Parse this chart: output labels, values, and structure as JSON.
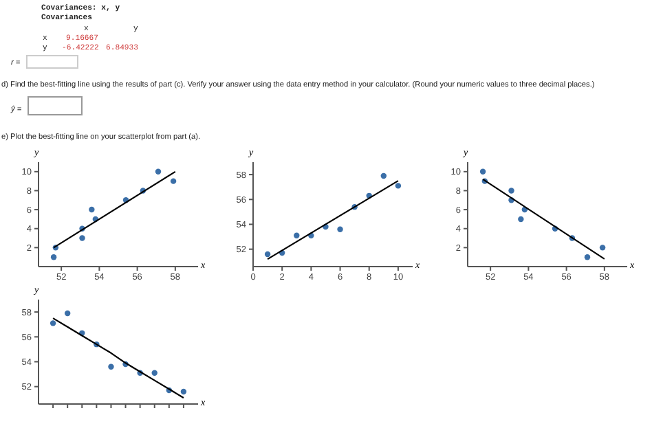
{
  "chart_data": [
    {
      "type": "other",
      "annotations": [
        "Covariances: x, y",
        "Covariances",
        "x",
        "y",
        "x",
        "9.16667",
        "y",
        "-6.42222",
        "6.84933",
        "r =",
        "d) Find the best-fitting line using the results of part (c). Verify your answer using the data entry method in your calculator. (Round your numeric values to three decimal places.)",
        "ŷ =",
        "e) Plot the best-fitting line on your scatterplot from part (a)."
      ]
    },
    {
      "type": "scatter",
      "xlabel": "x",
      "ylabel": "y",
      "xlim": [
        50.8,
        59.2
      ],
      "ylim": [
        0,
        11
      ],
      "xticks": [
        52,
        54,
        56,
        58
      ],
      "yticks": [
        2,
        4,
        6,
        8,
        10
      ],
      "series": [
        {
          "type": "scatter",
          "marker": "circle",
          "color": "#3b6fa8",
          "x": [
            51.6,
            51.7,
            53.1,
            53.1,
            53.6,
            53.8,
            55.4,
            56.3,
            57.1,
            57.9
          ],
          "values": [
            1,
            2,
            4,
            3,
            6,
            5,
            7,
            8,
            10,
            9
          ]
        },
        {
          "type": "line",
          "color": "#000000",
          "x": [
            51.6,
            58
          ],
          "values": [
            2,
            10
          ]
        }
      ]
    },
    {
      "type": "scatter",
      "xlabel": "x",
      "ylabel": "y",
      "xlim": [
        0,
        11
      ],
      "ylim": [
        50.6,
        59
      ],
      "xticks": [
        0,
        2,
        4,
        6,
        8,
        10
      ],
      "yticks": [
        52,
        54,
        56,
        58
      ],
      "series": [
        {
          "type": "scatter",
          "marker": "circle",
          "color": "#3b6fa8",
          "x": [
            1,
            2,
            3,
            4,
            5,
            6,
            7,
            8,
            9,
            10
          ],
          "values": [
            51.6,
            51.7,
            53.1,
            53.1,
            53.8,
            53.6,
            55.4,
            56.3,
            57.9,
            57.1
          ]
        },
        {
          "type": "line",
          "color": "#000000",
          "x": [
            1,
            10
          ],
          "values": [
            51.2,
            57.5
          ]
        }
      ]
    },
    {
      "type": "scatter",
      "xlabel": "x",
      "ylabel": "y",
      "xlim": [
        50.8,
        59.2
      ],
      "ylim": [
        0,
        11
      ],
      "xticks": [
        52,
        54,
        56,
        58
      ],
      "yticks": [
        2,
        4,
        6,
        8,
        10
      ],
      "series": [
        {
          "type": "scatter",
          "marker": "circle",
          "color": "#3b6fa8",
          "x": [
            51.6,
            51.7,
            53.1,
            53.1,
            53.6,
            53.8,
            55.4,
            56.3,
            57.1,
            57.9
          ],
          "values": [
            10,
            9,
            8,
            7,
            5,
            6,
            4,
            3,
            1,
            2
          ]
        },
        {
          "type": "line",
          "color": "#000000",
          "x": [
            51.6,
            58
          ],
          "values": [
            9.2,
            0.8
          ]
        }
      ]
    },
    {
      "type": "scatter",
      "xlabel": "x",
      "ylabel": "y",
      "categories": [
        null,
        null,
        null,
        null,
        null,
        null,
        null,
        null,
        null,
        null
      ],
      "ylim": [
        50.6,
        59
      ],
      "yticks": [
        52,
        54,
        56,
        58
      ],
      "series": [
        {
          "type": "scatter",
          "marker": "circle",
          "color": "#3b6fa8",
          "values": [
            57.1,
            57.9,
            56.3,
            55.4,
            53.6,
            53.8,
            53.1,
            53.1,
            51.7,
            51.6
          ]
        },
        {
          "type": "line",
          "color": "#000000",
          "values": [
            57.5,
            56.8,
            56.1,
            55.4,
            54.7,
            53.9,
            53.2,
            52.5,
            51.8,
            51.1
          ]
        }
      ]
    }
  ]
}
